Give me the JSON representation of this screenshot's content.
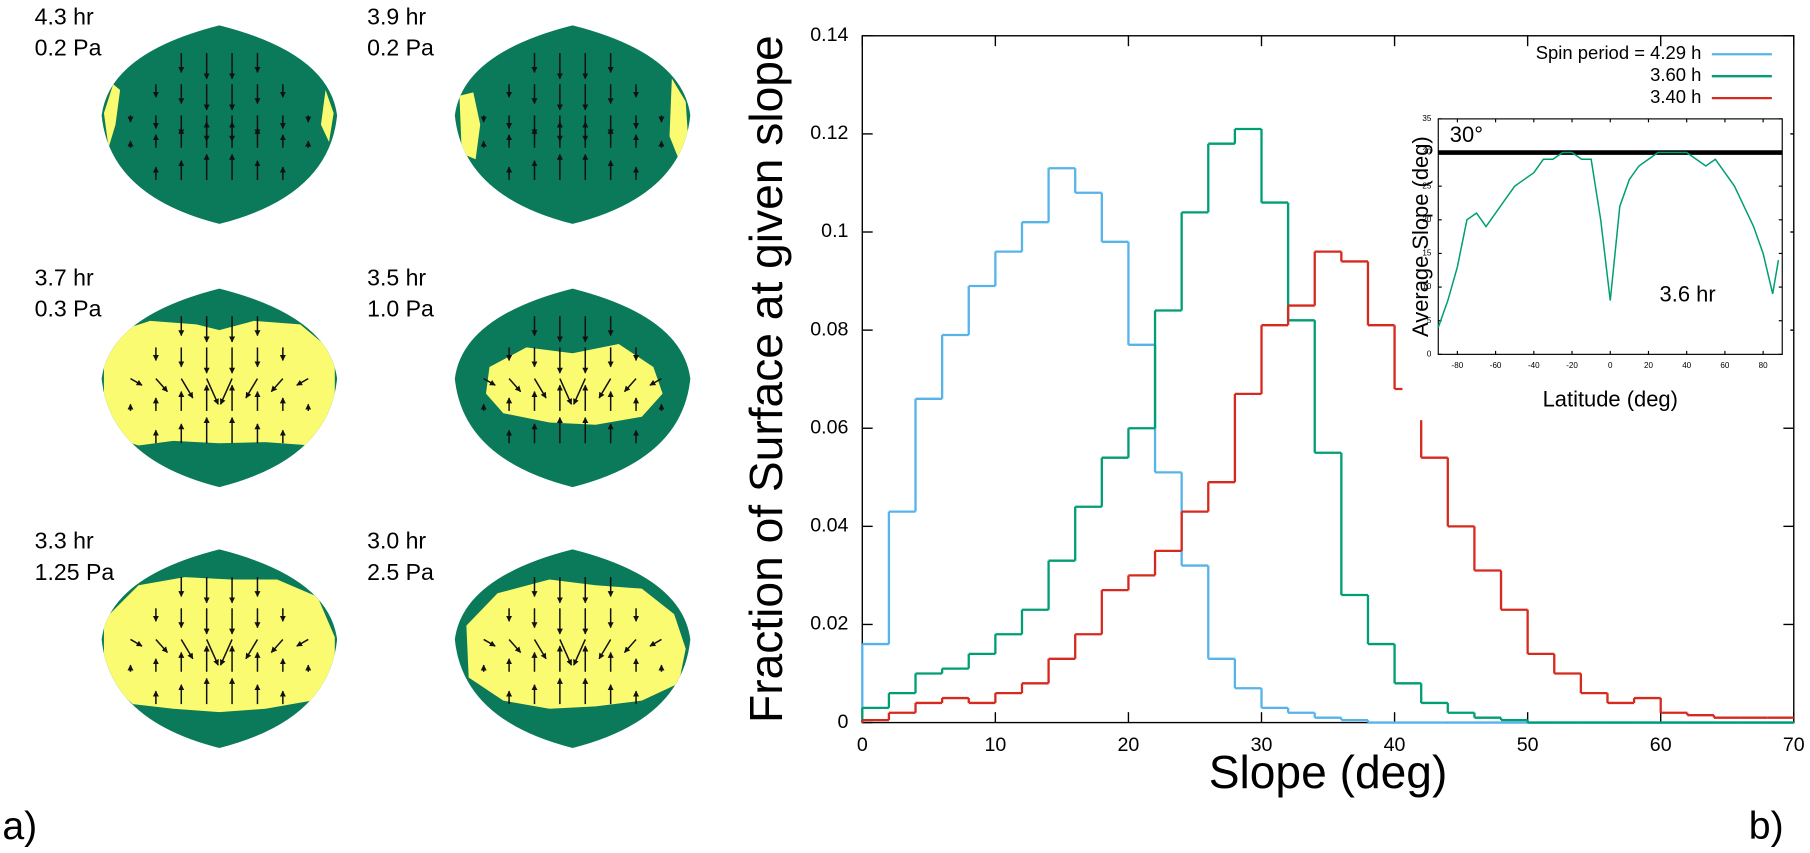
{
  "panel_labels": [
    "a)",
    "b)"
  ],
  "panels": [
    [
      "4.3 hr",
      "0.2 Pa"
    ],
    [
      "3.9 hr",
      "0.2 Pa"
    ],
    [
      "3.7 hr",
      "0.3 Pa"
    ],
    [
      "3.5 hr",
      "1.0 Pa"
    ],
    [
      "3.3 hr",
      "1.25 Pa"
    ],
    [
      "3.0 hr",
      "2.5 Pa"
    ]
  ],
  "chart_data": [
    {
      "type": "histogram",
      "x_label": "Slope (deg)",
      "y_label": "Fraction of Surface at given slope",
      "bins": [
        0,
        2,
        4,
        6,
        8,
        10,
        12,
        14,
        16,
        18,
        20,
        22,
        24,
        26,
        28,
        30,
        32,
        34,
        36,
        38,
        40,
        42,
        44,
        46,
        48,
        50,
        52,
        54,
        56,
        58,
        60,
        62,
        64,
        66,
        68,
        70
      ],
      "series": [
        {
          "name": "Spin period = 4.29 h",
          "color": "#56b4e9",
          "values": [
            0.016,
            0.043,
            0.066,
            0.079,
            0.089,
            0.096,
            0.102,
            0.113,
            0.108,
            0.098,
            0.077,
            0.051,
            0.032,
            0.013,
            0.007,
            0.003,
            0.002,
            0.001,
            0.0005,
            0,
            0,
            0,
            0,
            0,
            0,
            0,
            0,
            0,
            0,
            0,
            0,
            0,
            0,
            0,
            0
          ]
        },
        {
          "name": "3.60 h",
          "color": "#009e73",
          "values": [
            0.003,
            0.006,
            0.01,
            0.011,
            0.014,
            0.018,
            0.023,
            0.033,
            0.044,
            0.054,
            0.06,
            0.084,
            0.104,
            0.118,
            0.121,
            0.106,
            0.082,
            0.055,
            0.026,
            0.016,
            0.008,
            0.004,
            0.002,
            0.001,
            0.0005,
            0,
            0,
            0,
            0,
            0,
            0,
            0,
            0,
            0,
            0
          ]
        },
        {
          "name": "3.40 h",
          "color": "#d62a1e",
          "values": [
            0.0005,
            0.002,
            0.004,
            0.005,
            0.004,
            0.006,
            0.008,
            0.013,
            0.018,
            0.027,
            0.03,
            0.035,
            0.043,
            0.049,
            0.067,
            0.081,
            0.085,
            0.096,
            0.094,
            0.081,
            0.068,
            0.054,
            0.04,
            0.031,
            0.023,
            0.014,
            0.01,
            0.006,
            0.004,
            0.005,
            0.002,
            0.0015,
            0.001,
            0.001,
            0.001
          ]
        }
      ],
      "xlim": [
        0,
        70
      ],
      "xticks": [
        0,
        10,
        20,
        30,
        40,
        50,
        60,
        70
      ],
      "ylim": [
        0,
        0.14
      ],
      "yticks": [
        0,
        0.02,
        0.04,
        0.06,
        0.08,
        0.1,
        0.12,
        0.14
      ],
      "legend": "top-right",
      "grid": false
    },
    {
      "type": "line",
      "x_label": "Latitude (deg)",
      "y_label": "Average Slope (deg)",
      "annotation": "3.6 hr",
      "reference_line": {
        "value": 30,
        "label": "30°",
        "color": "#000000"
      },
      "x": [
        -90,
        -85,
        -80,
        -75,
        -70,
        -65,
        -60,
        -55,
        -50,
        -45,
        -40,
        -35,
        -30,
        -25,
        -20,
        -15,
        -10,
        -5,
        0,
        5,
        10,
        15,
        20,
        25,
        30,
        35,
        40,
        45,
        50,
        55,
        60,
        65,
        70,
        75,
        80,
        85,
        88
      ],
      "series": [
        {
          "name": "3.6 hr",
          "color": "#009e73",
          "values": [
            4,
            8,
            13,
            20,
            21,
            19,
            21,
            23,
            25,
            26,
            27,
            29,
            29,
            30,
            30,
            29,
            29,
            20,
            8,
            22,
            26,
            28,
            29,
            30,
            30,
            30,
            30,
            29,
            28,
            29,
            27,
            25,
            22,
            19,
            15,
            9,
            14
          ]
        }
      ],
      "xlim": [
        -90,
        90
      ],
      "xticks": [
        -80,
        -60,
        -40,
        -20,
        0,
        20,
        40,
        60,
        80
      ],
      "ylim": [
        0,
        35
      ],
      "yticks": [
        0,
        5,
        10,
        15,
        20,
        25,
        30,
        35
      ],
      "grid": false
    }
  ]
}
